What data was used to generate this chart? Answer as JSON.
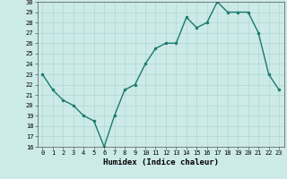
{
  "x": [
    0,
    1,
    2,
    3,
    4,
    5,
    6,
    7,
    8,
    9,
    10,
    11,
    12,
    13,
    14,
    15,
    16,
    17,
    18,
    19,
    20,
    21,
    22,
    23
  ],
  "y": [
    23.0,
    21.5,
    20.5,
    20.0,
    19.0,
    18.5,
    16.0,
    19.0,
    21.5,
    22.0,
    24.0,
    25.5,
    26.0,
    26.0,
    28.5,
    27.5,
    28.0,
    30.0,
    29.0,
    29.0,
    29.0,
    27.0,
    23.0,
    21.5
  ],
  "color": "#1a7a6e",
  "bg_color": "#cceae7",
  "grid_color": "#b0d8d4",
  "xlabel": "Humidex (Indice chaleur)",
  "ylim": [
    16,
    30
  ],
  "xlim": [
    -0.5,
    23.5
  ],
  "yticks": [
    16,
    17,
    18,
    19,
    20,
    21,
    22,
    23,
    24,
    25,
    26,
    27,
    28,
    29,
    30
  ],
  "xticks": [
    0,
    1,
    2,
    3,
    4,
    5,
    6,
    7,
    8,
    9,
    10,
    11,
    12,
    13,
    14,
    15,
    16,
    17,
    18,
    19,
    20,
    21,
    22,
    23
  ],
  "xtick_labels": [
    "0",
    "1",
    "2",
    "3",
    "4",
    "5",
    "6",
    "7",
    "8",
    "9",
    "10",
    "11",
    "12",
    "13",
    "14",
    "15",
    "16",
    "17",
    "18",
    "19",
    "20",
    "21",
    "22",
    "23"
  ],
  "marker": "o",
  "marker_size": 2.0,
  "linewidth": 1.0,
  "tick_fontsize": 5.0,
  "xlabel_fontsize": 6.5,
  "xlabel_bold": true
}
